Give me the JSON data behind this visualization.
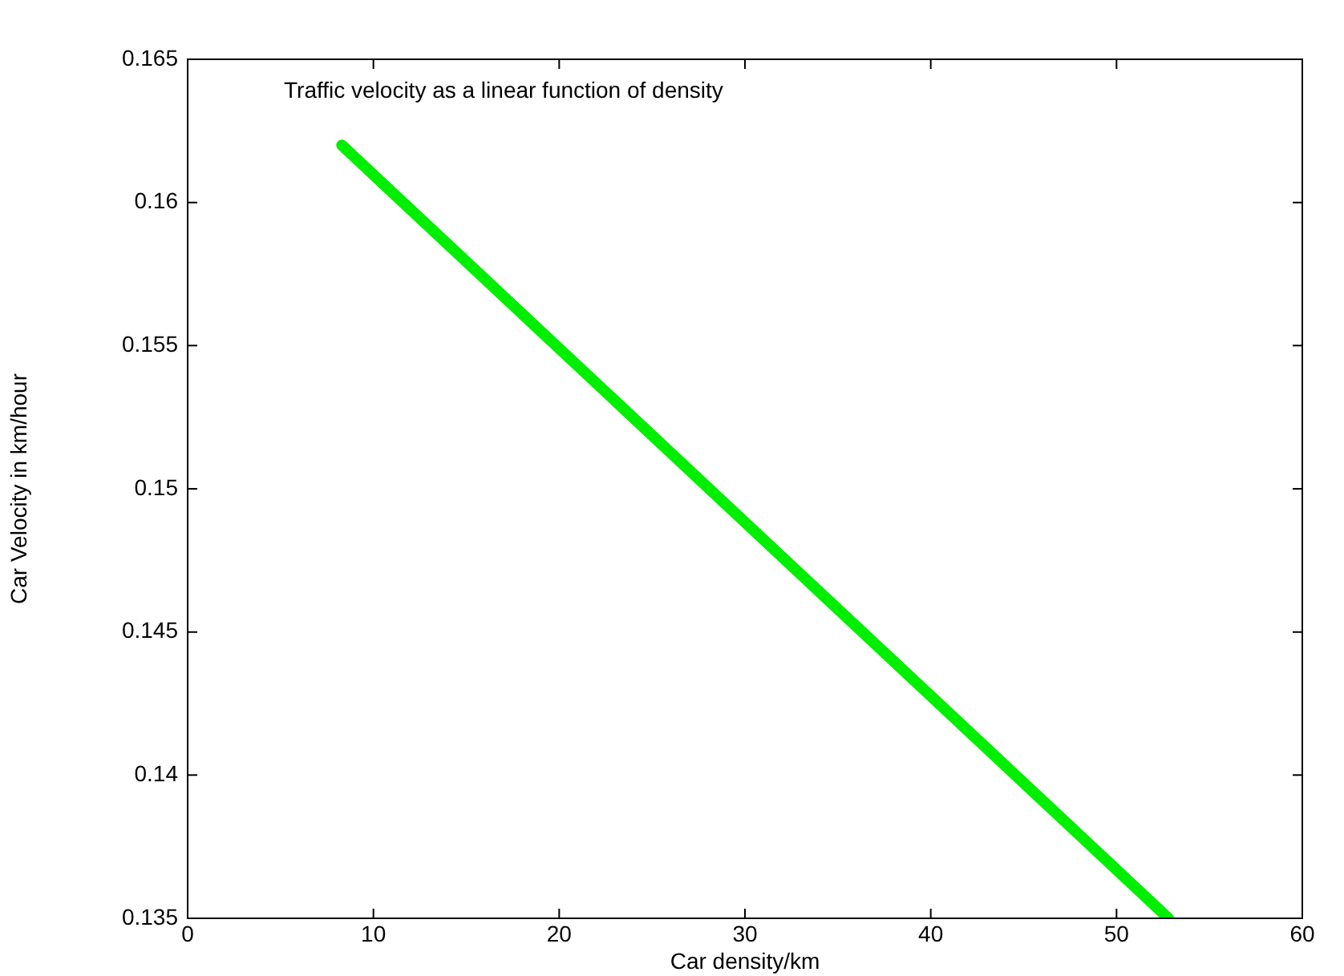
{
  "chart_data": {
    "type": "line",
    "title": "Traffic velocity as a linear function of density",
    "xlabel": "Car density/km",
    "ylabel": "Car Velocity in km/hour",
    "x": [
      8.3,
      52.8
    ],
    "series": [
      {
        "color": "#00ee00",
        "values": [
          0.162,
          0.135
        ]
      }
    ],
    "xlim": [
      0,
      60
    ],
    "xticks": [
      0,
      10,
      20,
      30,
      40,
      50,
      60
    ],
    "ylim": [
      0.135,
      0.165
    ],
    "yticks": [
      0.135,
      0.14,
      0.145,
      0.15,
      0.155,
      0.16,
      0.165
    ],
    "grid": false,
    "legend": false,
    "marker": "none",
    "line_style": "solid"
  }
}
